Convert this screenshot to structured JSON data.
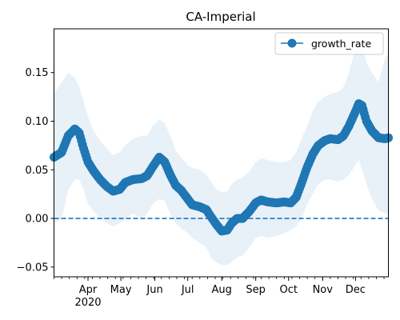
{
  "chart_data": {
    "type": "line",
    "title": "CA-Imperial",
    "xlabel": "",
    "ylabel": "",
    "x_start": "2020-03-01",
    "x_end": "2020-12-31",
    "xlim": [
      "2020-03-01",
      "2020-12-31"
    ],
    "ylim": [
      -0.06,
      0.195
    ],
    "x_ticks": [
      {
        "date": "2020-04-01",
        "label": "Apr"
      },
      {
        "date": "2020-05-01",
        "label": "May"
      },
      {
        "date": "2020-06-01",
        "label": "Jun"
      },
      {
        "date": "2020-07-01",
        "label": "Jul"
      },
      {
        "date": "2020-08-01",
        "label": "Aug"
      },
      {
        "date": "2020-09-01",
        "label": "Sep"
      },
      {
        "date": "2020-10-01",
        "label": "Oct"
      },
      {
        "date": "2020-11-01",
        "label": "Nov"
      },
      {
        "date": "2020-12-01",
        "label": "Dec"
      }
    ],
    "year_label": "2020",
    "y_ticks": [
      -0.05,
      0.0,
      0.05,
      0.1,
      0.15
    ],
    "y_tick_labels": [
      "−0.05",
      "0.00",
      "0.05",
      "0.10",
      "0.15"
    ],
    "reference_line": {
      "y": 0.0,
      "style": "dashed",
      "color": "#1f77b4"
    },
    "legend": {
      "position": "top-right",
      "entries": [
        "growth_rate"
      ]
    },
    "grid": false,
    "series": [
      {
        "name": "growth_rate",
        "color": "#1f77b4",
        "band_color": "#e8f0f8",
        "points": [
          [
            "2020-03-01",
            0.063,
            0.128,
            -0.005
          ],
          [
            "2020-03-08",
            0.068,
            0.14,
            0.0
          ],
          [
            "2020-03-14",
            0.085,
            0.15,
            0.03
          ],
          [
            "2020-03-20",
            0.092,
            0.145,
            0.04
          ],
          [
            "2020-03-24",
            0.088,
            0.135,
            0.04
          ],
          [
            "2020-03-28",
            0.072,
            0.12,
            0.03
          ],
          [
            "2020-04-01",
            0.058,
            0.105,
            0.015
          ],
          [
            "2020-04-06",
            0.049,
            0.09,
            0.008
          ],
          [
            "2020-04-12",
            0.04,
            0.08,
            0.0
          ],
          [
            "2020-04-18",
            0.033,
            0.072,
            -0.005
          ],
          [
            "2020-04-24",
            0.028,
            0.065,
            -0.008
          ],
          [
            "2020-04-30",
            0.03,
            0.068,
            -0.005
          ],
          [
            "2020-05-05",
            0.037,
            0.075,
            0.0
          ],
          [
            "2020-05-12",
            0.04,
            0.082,
            0.005
          ],
          [
            "2020-05-20",
            0.041,
            0.085,
            0.0
          ],
          [
            "2020-05-25",
            0.044,
            0.085,
            0.005
          ],
          [
            "2020-05-30",
            0.053,
            0.095,
            0.015
          ],
          [
            "2020-06-05",
            0.063,
            0.102,
            0.02
          ],
          [
            "2020-06-10",
            0.058,
            0.098,
            0.018
          ],
          [
            "2020-06-15",
            0.045,
            0.085,
            0.005
          ],
          [
            "2020-06-20",
            0.034,
            0.07,
            -0.005
          ],
          [
            "2020-06-25",
            0.029,
            0.063,
            -0.01
          ],
          [
            "2020-07-01",
            0.02,
            0.055,
            -0.015
          ],
          [
            "2020-07-05",
            0.014,
            0.052,
            -0.02
          ],
          [
            "2020-07-12",
            0.012,
            0.05,
            -0.025
          ],
          [
            "2020-07-18",
            0.009,
            0.045,
            -0.03
          ],
          [
            "2020-07-22",
            0.002,
            0.038,
            -0.04
          ],
          [
            "2020-07-27",
            -0.006,
            0.03,
            -0.045
          ],
          [
            "2020-08-01",
            -0.013,
            0.027,
            -0.048
          ],
          [
            "2020-08-06",
            -0.012,
            0.028,
            -0.048
          ],
          [
            "2020-08-10",
            -0.005,
            0.035,
            -0.045
          ],
          [
            "2020-08-15",
            0.0,
            0.04,
            -0.04
          ],
          [
            "2020-08-20",
            0.0,
            0.042,
            -0.038
          ],
          [
            "2020-08-26",
            0.007,
            0.048,
            -0.03
          ],
          [
            "2020-09-01",
            0.016,
            0.058,
            -0.02
          ],
          [
            "2020-09-06",
            0.019,
            0.062,
            -0.018
          ],
          [
            "2020-09-12",
            0.017,
            0.06,
            -0.02
          ],
          [
            "2020-09-20",
            0.016,
            0.058,
            -0.018
          ],
          [
            "2020-09-27",
            0.017,
            0.058,
            -0.015
          ],
          [
            "2020-10-03",
            0.016,
            0.06,
            -0.012
          ],
          [
            "2020-10-08",
            0.022,
            0.068,
            -0.008
          ],
          [
            "2020-10-13",
            0.037,
            0.083,
            0.0
          ],
          [
            "2020-10-18",
            0.053,
            0.095,
            0.015
          ],
          [
            "2020-10-23",
            0.066,
            0.11,
            0.025
          ],
          [
            "2020-10-28",
            0.075,
            0.12,
            0.035
          ],
          [
            "2020-11-03",
            0.08,
            0.125,
            0.04
          ],
          [
            "2020-11-08",
            0.082,
            0.128,
            0.04
          ],
          [
            "2020-11-15",
            0.081,
            0.13,
            0.038
          ],
          [
            "2020-11-20",
            0.085,
            0.135,
            0.04
          ],
          [
            "2020-11-25",
            0.095,
            0.15,
            0.045
          ],
          [
            "2020-12-01",
            0.11,
            0.175,
            0.055
          ],
          [
            "2020-12-04",
            0.118,
            0.185,
            0.06
          ],
          [
            "2020-12-07",
            0.116,
            0.18,
            0.05
          ],
          [
            "2020-12-11",
            0.1,
            0.16,
            0.035
          ],
          [
            "2020-12-16",
            0.09,
            0.15,
            0.02
          ],
          [
            "2020-12-22",
            0.083,
            0.14,
            0.008
          ],
          [
            "2020-12-28",
            0.082,
            0.165,
            0.005
          ],
          [
            "2020-12-31",
            0.083,
            0.17,
            0.005
          ]
        ]
      }
    ]
  }
}
